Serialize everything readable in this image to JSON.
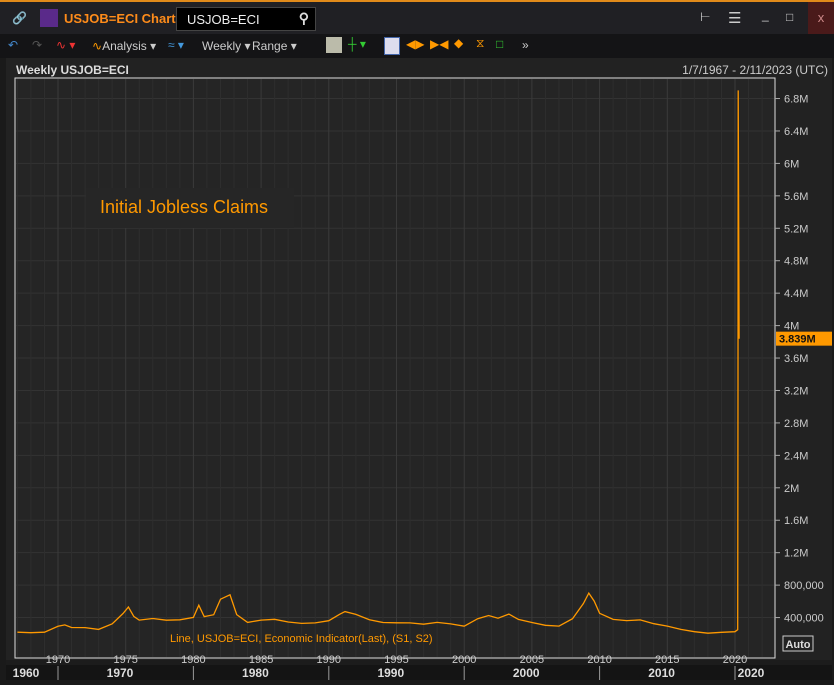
{
  "window": {
    "title": "USJOB=ECI Chart",
    "search_value": "USJOB=ECI",
    "icons": [
      "link-icon",
      "chart-app-icon",
      "search-icon",
      "tree-icon",
      "menu-icon",
      "minimize-icon",
      "maximize-icon",
      "close-icon"
    ]
  },
  "toolbar": {
    "analysis": "Analysis",
    "interval": "Weekly",
    "range": "Range"
  },
  "header": {
    "left": "Weekly USJOB=ECI",
    "right": "1/7/1967 - 2/11/2023 (UTC)"
  },
  "annotation": "Initial Jobless Claims",
  "legend": "Line, USJOB=ECI, Economic Indicator(Last), (S1, S2)",
  "auto_label": "Auto",
  "colors": {
    "line": "#ff9900",
    "background": "#222222",
    "accent": "#e08a1a"
  },
  "chart_data": {
    "type": "line",
    "last_value_label": "3.839M",
    "ylim": [
      0,
      7000000
    ],
    "xlim": [
      1967.0,
      2023.1
    ],
    "y_ticks": [
      "400,000",
      "800,000",
      "1.2M",
      "1.6M",
      "2M",
      "2.4M",
      "2.8M",
      "3.2M",
      "3.6M",
      "4M",
      "4.4M",
      "4.8M",
      "5.2M",
      "5.6M",
      "6M",
      "6.4M",
      "6.8M"
    ],
    "y_tick_values": [
      400000,
      800000,
      1200000,
      1600000,
      2000000,
      2400000,
      2800000,
      3200000,
      3600000,
      4000000,
      4400000,
      4800000,
      5200000,
      5600000,
      6000000,
      6400000,
      6800000
    ],
    "x_ticks": [
      "1970",
      "1975",
      "1980",
      "1985",
      "1990",
      "1995",
      "2000",
      "2005",
      "2010",
      "2015",
      "2020"
    ],
    "decade_ticks": [
      "1960",
      "1970",
      "1980",
      "1990",
      "2000",
      "2010",
      "2020"
    ],
    "series": [
      {
        "x": [
          1967.0,
          1968.0,
          1969.0,
          1970.0,
          1970.5,
          1971.0,
          1972.0,
          1973.0,
          1974.0,
          1974.8,
          1975.2,
          1975.6,
          1976.0,
          1977.0,
          1978.0,
          1979.0,
          1980.0,
          1980.4,
          1980.8,
          1981.5,
          1982.0,
          1982.7,
          1983.2,
          1984.0,
          1985.0,
          1986.0,
          1987.0,
          1988.0,
          1989.0,
          1990.0,
          1990.8,
          1991.2,
          1992.0,
          1993.0,
          1994.0,
          1995.0,
          1996.0,
          1997.0,
          1998.0,
          1999.0,
          2000.0,
          2001.0,
          2001.8,
          2002.5,
          2003.3,
          2004.0,
          2005.0,
          2006.0,
          2007.0,
          2008.0,
          2008.8,
          2009.2,
          2009.6,
          2010.0,
          2011.0,
          2012.0,
          2013.0,
          2014.0,
          2015.0,
          2016.0,
          2017.0,
          2018.0,
          2019.0,
          2020.0,
          2020.2,
          2020.22,
          2020.24,
          2020.26,
          2020.3
        ],
        "values": [
          220000,
          200000,
          205000,
          290000,
          330000,
          300000,
          280000,
          240000,
          300000,
          440000,
          560000,
          450000,
          380000,
          370000,
          340000,
          360000,
          420000,
          600000,
          430000,
          420000,
          580000,
          650000,
          450000,
          370000,
          390000,
          370000,
          320000,
          310000,
          340000,
          390000,
          470000,
          470000,
          410000,
          350000,
          340000,
          360000,
          360000,
          320000,
          320000,
          300000,
          290000,
          410000,
          460000,
          400000,
          420000,
          350000,
          330000,
          320000,
          320000,
          400000,
          550000,
          650000,
          580000,
          470000,
          410000,
          380000,
          360000,
          300000,
          280000,
          260000,
          245000,
          220000,
          215000,
          210000,
          250000,
          3300000,
          6900000,
          5900000,
          3839000
        ]
      }
    ]
  }
}
